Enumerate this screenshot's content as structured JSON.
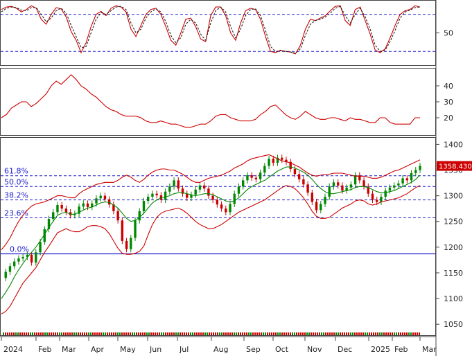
{
  "chart_data": [
    {
      "type": "line",
      "panel": "stochastic",
      "y_ticks": [
        50
      ],
      "ylim": [
        0,
        100
      ],
      "reference_lines": [
        80,
        20
      ],
      "series": [
        {
          "color": "#cc0000",
          "style": "solid",
          "values": [
            88,
            92,
            93,
            90,
            84,
            88,
            94,
            90,
            72,
            64,
            80,
            91,
            89,
            76,
            52,
            38,
            18,
            34,
            60,
            80,
            85,
            78,
            90,
            94,
            92,
            84,
            56,
            44,
            62,
            80,
            88,
            90,
            80,
            60,
            38,
            30,
            50,
            72,
            74,
            60,
            40,
            36,
            78,
            92,
            92,
            78,
            50,
            38,
            66,
            86,
            90,
            88,
            72,
            44,
            20,
            18,
            22,
            20,
            19,
            16,
            30,
            56,
            72,
            70,
            74,
            78,
            86,
            93,
            94,
            70,
            62,
            88,
            92,
            70,
            48,
            22,
            18,
            24,
            42,
            62,
            80,
            86,
            88,
            94,
            92
          ]
        },
        {
          "color": "#222222",
          "style": "dashed",
          "values": [
            84,
            90,
            92,
            91,
            87,
            86,
            91,
            91,
            80,
            68,
            74,
            86,
            90,
            82,
            62,
            44,
            26,
            28,
            50,
            72,
            83,
            80,
            86,
            92,
            93,
            88,
            66,
            50,
            56,
            74,
            84,
            89,
            84,
            68,
            46,
            34,
            42,
            64,
            72,
            66,
            48,
            38,
            66,
            86,
            92,
            84,
            60,
            42,
            56,
            78,
            88,
            89,
            78,
            54,
            28,
            20,
            21,
            20,
            19,
            17,
            24,
            46,
            64,
            70,
            72,
            76,
            82,
            90,
            93,
            78,
            66,
            80,
            90,
            76,
            56,
            30,
            20,
            22,
            36,
            54,
            74,
            84,
            87,
            91,
            92
          ]
        }
      ]
    },
    {
      "type": "line",
      "panel": "adx",
      "y_ticks": [
        40,
        30,
        20
      ],
      "ylim": [
        10,
        50
      ],
      "series": [
        {
          "color": "#cc0000",
          "values": [
            20,
            22,
            26,
            28,
            30,
            30,
            27,
            29,
            32,
            35,
            40,
            43,
            41,
            44,
            47,
            44,
            40,
            38,
            35,
            33,
            30,
            27,
            25,
            24,
            22,
            21,
            21,
            21,
            20,
            18,
            17,
            17,
            18,
            17,
            16,
            16,
            15,
            14,
            14,
            15,
            16,
            16,
            18,
            21,
            22,
            22,
            20,
            19,
            18,
            18,
            18,
            19,
            22,
            24,
            27,
            28,
            25,
            22,
            20,
            19,
            21,
            24,
            22,
            20,
            19,
            19,
            20,
            20,
            19,
            18,
            20,
            19,
            19,
            18,
            17,
            17,
            20,
            20,
            17,
            16,
            16,
            16,
            16,
            20,
            20
          ]
        }
      ]
    },
    {
      "type": "line",
      "panel": "price",
      "y_ticks": [
        1400,
        1350,
        1300,
        1250,
        1200,
        1150,
        1100,
        1050
      ],
      "ylim": [
        1030,
        1410
      ],
      "x_tick_labels": [
        "2024",
        "Feb",
        "Mar",
        "Apr",
        "May",
        "Jun",
        "Jul",
        "Aug",
        "Sep",
        "Oct",
        "Nov",
        "Dec",
        "2025",
        "Feb",
        "Mar"
      ],
      "fibonacci": [
        {
          "label": "61.8%",
          "value": 1339
        },
        {
          "label": "50.0%",
          "value": 1318
        },
        {
          "label": "38.2%",
          "value": 1292
        },
        {
          "label": "23.6%",
          "value": 1257
        },
        {
          "label": "0.0%",
          "value": 1187
        }
      ],
      "last_price_label": "1358.430",
      "close": [
        1140,
        1152,
        1163,
        1172,
        1178,
        1181,
        1185,
        1170,
        1190,
        1210,
        1235,
        1255,
        1268,
        1282,
        1275,
        1268,
        1262,
        1265,
        1279,
        1285,
        1278,
        1285,
        1295,
        1300,
        1293,
        1283,
        1270,
        1252,
        1212,
        1196,
        1218,
        1252,
        1270,
        1290,
        1298,
        1304,
        1301,
        1292,
        1308,
        1318,
        1330,
        1314,
        1304,
        1296,
        1302,
        1312,
        1320,
        1314,
        1300,
        1292,
        1283,
        1275,
        1268,
        1284,
        1304,
        1318,
        1330,
        1340,
        1335,
        1332,
        1345,
        1358,
        1372,
        1364,
        1374,
        1370,
        1366,
        1352,
        1342,
        1332,
        1322,
        1306,
        1288,
        1272,
        1284,
        1298,
        1318,
        1326,
        1320,
        1310,
        1316,
        1322,
        1340,
        1330,
        1318,
        1304,
        1292,
        1288,
        1298,
        1310,
        1316,
        1320,
        1324,
        1334,
        1330,
        1344,
        1350,
        1358
      ],
      "series": [
        {
          "color": "#008800",
          "role": "moving-average",
          "values": [
            1100,
            1112,
            1126,
            1142,
            1156,
            1168,
            1180,
            1190,
            1200,
            1212,
            1225,
            1238,
            1250,
            1262,
            1266,
            1268,
            1264,
            1264,
            1268,
            1272,
            1276,
            1278,
            1282,
            1286,
            1288,
            1287,
            1282,
            1276,
            1266,
            1256,
            1250,
            1252,
            1258,
            1266,
            1276,
            1286,
            1292,
            1296,
            1298,
            1300,
            1304,
            1306,
            1306,
            1304,
            1302,
            1300,
            1302,
            1304,
            1304,
            1302,
            1298,
            1294,
            1290,
            1288,
            1290,
            1296,
            1304,
            1312,
            1318,
            1322,
            1326,
            1330,
            1336,
            1342,
            1348,
            1352,
            1356,
            1356,
            1354,
            1350,
            1346,
            1340,
            1332,
            1322,
            1314,
            1308,
            1304,
            1304,
            1306,
            1308,
            1310,
            1312,
            1316,
            1318,
            1318,
            1316,
            1312,
            1308,
            1306,
            1306,
            1308,
            1310,
            1314,
            1318,
            1322,
            1326,
            1332,
            1340
          ]
        },
        {
          "color": "#cc0000",
          "role": "bollinger-upper",
          "values": [
            1195,
            1205,
            1218,
            1235,
            1250,
            1262,
            1272,
            1280,
            1284,
            1286,
            1288,
            1292,
            1296,
            1300,
            1300,
            1298,
            1296,
            1296,
            1304,
            1310,
            1314,
            1318,
            1322,
            1324,
            1326,
            1326,
            1326,
            1330,
            1336,
            1340,
            1336,
            1330,
            1326,
            1332,
            1340,
            1346,
            1350,
            1352,
            1352,
            1350,
            1350,
            1346,
            1342,
            1336,
            1330,
            1326,
            1326,
            1330,
            1334,
            1336,
            1338,
            1340,
            1344,
            1348,
            1354,
            1358,
            1362,
            1368,
            1372,
            1374,
            1376,
            1378,
            1380,
            1376,
            1372,
            1368,
            1366,
            1364,
            1360,
            1356,
            1350,
            1344,
            1340,
            1338,
            1340,
            1342,
            1342,
            1344,
            1344,
            1344,
            1342,
            1340,
            1338,
            1338,
            1338,
            1336,
            1334,
            1334,
            1336,
            1340,
            1344,
            1348,
            1350,
            1354,
            1358,
            1362,
            1366,
            1370
          ]
        },
        {
          "color": "#cc0000",
          "role": "bollinger-lower",
          "values": [
            1070,
            1075,
            1085,
            1100,
            1115,
            1130,
            1140,
            1150,
            1160,
            1175,
            1190,
            1202,
            1215,
            1228,
            1232,
            1236,
            1232,
            1230,
            1230,
            1234,
            1240,
            1242,
            1242,
            1240,
            1236,
            1226,
            1212,
            1198,
            1188,
            1186,
            1186,
            1188,
            1192,
            1202,
            1224,
            1244,
            1258,
            1266,
            1270,
            1272,
            1274,
            1276,
            1272,
            1266,
            1258,
            1250,
            1244,
            1240,
            1236,
            1236,
            1240,
            1244,
            1250,
            1256,
            1262,
            1268,
            1272,
            1276,
            1280,
            1284,
            1288,
            1292,
            1298,
            1304,
            1310,
            1316,
            1320,
            1318,
            1314,
            1306,
            1296,
            1284,
            1270,
            1260,
            1256,
            1256,
            1258,
            1264,
            1270,
            1276,
            1280,
            1284,
            1290,
            1292,
            1290,
            1284,
            1282,
            1284,
            1288,
            1290,
            1292,
            1294,
            1296,
            1300,
            1304,
            1310,
            1316,
            1320
          ]
        }
      ]
    }
  ]
}
